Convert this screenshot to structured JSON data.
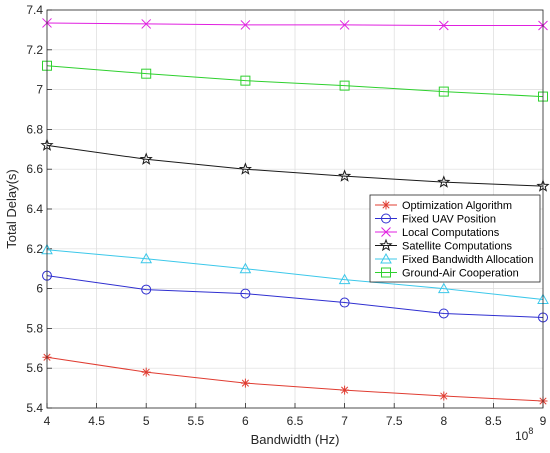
{
  "chart_data": {
    "type": "line",
    "xlabel": "Bandwidth (Hz)",
    "ylabel": "Total Delay(s)",
    "x_exponent": "10",
    "x_exponent_power": "8",
    "xlim": [
      4,
      9
    ],
    "ylim": [
      5.4,
      7.4
    ],
    "xticks": [
      "4",
      "4.5",
      "5",
      "5.5",
      "6",
      "6.5",
      "7",
      "7.5",
      "8",
      "8.5",
      "9"
    ],
    "yticks": [
      "5.4",
      "5.6",
      "5.8",
      "6",
      "6.2",
      "6.4",
      "6.6",
      "6.8",
      "7",
      "7.2",
      "7.4"
    ],
    "grid": true,
    "legend_position": "right",
    "x": [
      4,
      5,
      6,
      7,
      8,
      9
    ],
    "series": [
      {
        "name": "Optimization Algorithm",
        "color": "#e03c31",
        "marker": "asterisk",
        "values": [
          5.655,
          5.58,
          5.525,
          5.49,
          5.46,
          5.435
        ]
      },
      {
        "name": "Fixed UAV Position",
        "color": "#2f2fd0",
        "marker": "circle",
        "values": [
          6.065,
          5.995,
          5.975,
          5.93,
          5.875,
          5.855
        ]
      },
      {
        "name": "Local Computations",
        "color": "#e020e0",
        "marker": "x",
        "values": [
          7.335,
          7.33,
          7.325,
          7.325,
          7.322,
          7.322
        ]
      },
      {
        "name": "Satellite Computations",
        "color": "#1a1a1a",
        "marker": "star",
        "values": [
          6.72,
          6.65,
          6.6,
          6.565,
          6.535,
          6.515
        ]
      },
      {
        "name": "Fixed Bandwidth Allocation",
        "color": "#3cc8ea",
        "marker": "triangle",
        "values": [
          6.195,
          6.15,
          6.1,
          6.045,
          6.0,
          5.945
        ]
      },
      {
        "name": "Ground-Air Cooperation",
        "color": "#2ed02e",
        "marker": "square",
        "values": [
          7.12,
          7.08,
          7.045,
          7.02,
          6.99,
          6.965
        ]
      }
    ]
  }
}
